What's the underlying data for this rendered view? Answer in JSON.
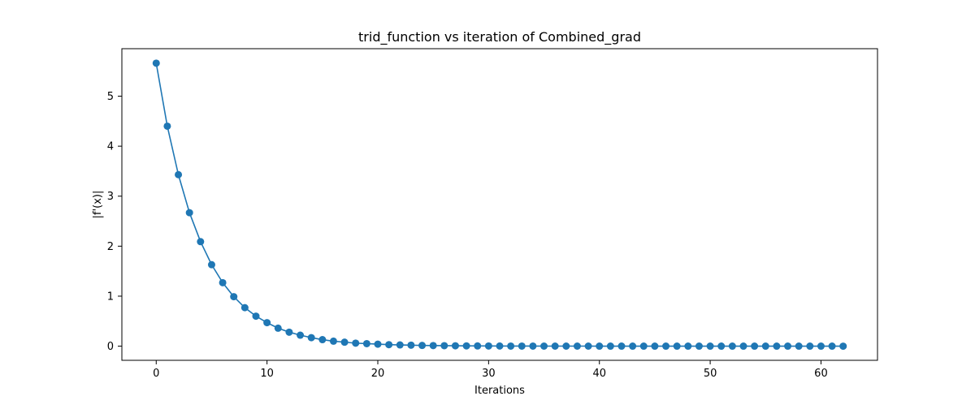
{
  "chart_data": {
    "type": "line",
    "title": "trid_function vs iteration of Combined_grad",
    "xlabel": "Iterations",
    "ylabel": "|f'(x)|",
    "xlim": [
      -3.1,
      65.1
    ],
    "ylim": [
      -0.283,
      5.95
    ],
    "xticks": [
      0,
      10,
      20,
      30,
      40,
      50,
      60
    ],
    "yticks": [
      0,
      1,
      2,
      3,
      4,
      5
    ],
    "grid": false,
    "legend": "none",
    "series": [
      {
        "color": "#1f77b4",
        "marker": "circle",
        "x": [
          0,
          1,
          2,
          3,
          4,
          5,
          6,
          7,
          8,
          9,
          10,
          11,
          12,
          13,
          14,
          15,
          16,
          17,
          18,
          19,
          20,
          21,
          22,
          23,
          24,
          25,
          26,
          27,
          28,
          29,
          30,
          31,
          32,
          33,
          34,
          35,
          36,
          37,
          38,
          39,
          40,
          41,
          42,
          43,
          44,
          45,
          46,
          47,
          48,
          49,
          50,
          51,
          52,
          53,
          54,
          55,
          56,
          57,
          58,
          59,
          60,
          61,
          62
        ],
        "values": [
          5.66,
          4.4,
          3.43,
          2.67,
          2.09,
          1.63,
          1.27,
          0.99,
          0.77,
          0.6,
          0.47,
          0.36,
          0.28,
          0.22,
          0.17,
          0.13,
          0.1,
          0.08,
          0.06,
          0.05,
          0.04,
          0.03,
          0.025,
          0.02,
          0.015,
          0.012,
          0.01,
          0.008,
          0.006,
          0.005,
          0.004,
          0.003,
          0.002,
          0.002,
          0.002,
          0.001,
          0.001,
          0.001,
          0.001,
          0.001,
          0.0005,
          0.0005,
          0.0005,
          0.0004,
          0.0004,
          0.0003,
          0.0003,
          0.0002,
          0.0002,
          0.0002,
          0.0001,
          0.0001,
          0.0001,
          0.0001,
          0.0001,
          0.0001,
          0.0001,
          0.0001,
          0.0001,
          0.0001,
          0.0001,
          0.0001,
          0.0
        ]
      }
    ]
  }
}
